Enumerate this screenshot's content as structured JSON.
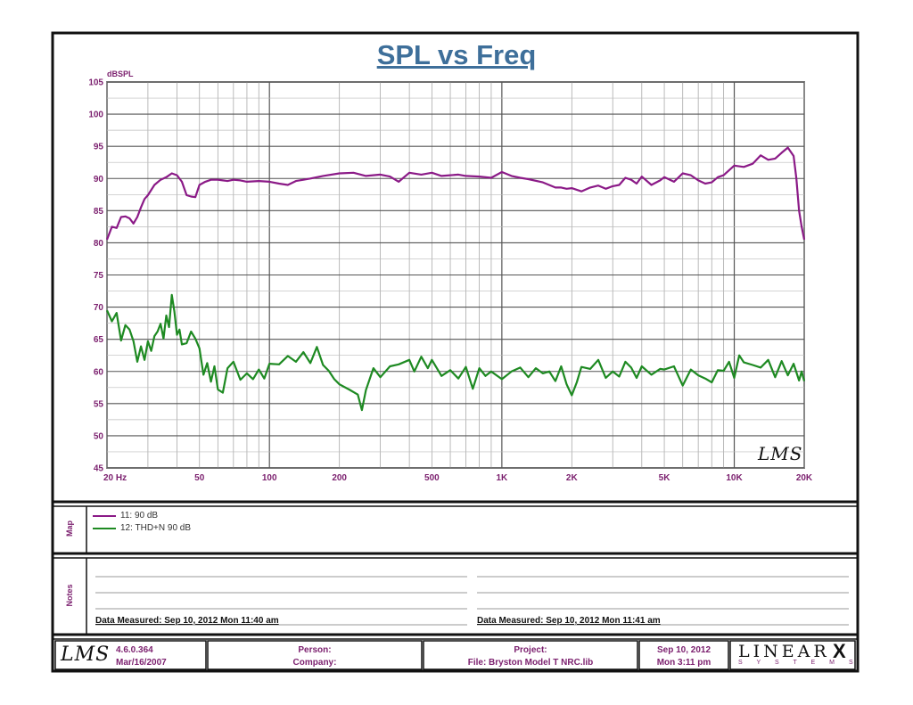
{
  "chart_data": {
    "type": "line",
    "title": "SPL vs Freq",
    "ylabel": "dBSPL",
    "xscale": "log",
    "xlim": [
      20,
      20000
    ],
    "ylim": [
      45,
      105
    ],
    "y_ticks": [
      45,
      50,
      55,
      60,
      65,
      70,
      75,
      80,
      85,
      90,
      95,
      100,
      105
    ],
    "x_tick_labels": [
      {
        "value": 20,
        "label": "20  Hz"
      },
      {
        "value": 50,
        "label": "50"
      },
      {
        "value": 100,
        "label": "100"
      },
      {
        "value": 200,
        "label": "200"
      },
      {
        "value": 500,
        "label": "500"
      },
      {
        "value": 1000,
        "label": "1K"
      },
      {
        "value": 2000,
        "label": "2K"
      },
      {
        "value": 5000,
        "label": "5K"
      },
      {
        "value": 10000,
        "label": "10K"
      },
      {
        "value": 20000,
        "label": "20K"
      }
    ],
    "grid": true,
    "legend_position": "below-chart",
    "series": [
      {
        "name": "11: 90 dB",
        "color": "#8b1a87",
        "x": [
          20,
          21,
          22,
          23,
          24,
          25,
          26,
          27,
          28,
          29,
          30,
          32,
          34,
          36,
          38,
          40,
          42,
          44,
          46,
          48,
          50,
          53,
          56,
          60,
          63,
          66,
          70,
          75,
          80,
          90,
          100,
          110,
          120,
          130,
          140,
          150,
          170,
          200,
          230,
          260,
          300,
          330,
          360,
          400,
          450,
          500,
          550,
          600,
          650,
          700,
          800,
          900,
          1000,
          1100,
          1200,
          1300,
          1500,
          1700,
          1800,
          1900,
          2000,
          2200,
          2400,
          2600,
          2800,
          3000,
          3200,
          3400,
          3600,
          3800,
          4000,
          4400,
          4800,
          5000,
          5500,
          6000,
          6500,
          7000,
          7500,
          8000,
          8500,
          9000,
          10000,
          11000,
          12000,
          13000,
          14000,
          15000,
          16000,
          17000,
          18000,
          18500,
          19000,
          19500,
          20000
        ],
        "y": [
          80.5,
          82.5,
          82.3,
          84.0,
          84.1,
          83.8,
          83.0,
          84.0,
          85.5,
          86.8,
          87.4,
          89.0,
          89.8,
          90.2,
          90.8,
          90.5,
          89.5,
          87.4,
          87.2,
          87.1,
          89.0,
          89.5,
          89.8,
          89.8,
          89.7,
          89.6,
          89.8,
          89.7,
          89.5,
          89.6,
          89.5,
          89.2,
          89.0,
          89.6,
          89.8,
          90.0,
          90.4,
          90.8,
          90.9,
          90.4,
          90.6,
          90.3,
          89.5,
          90.9,
          90.6,
          90.9,
          90.4,
          90.5,
          90.6,
          90.4,
          90.3,
          90.1,
          91.0,
          90.4,
          90.1,
          89.9,
          89.4,
          88.6,
          88.6,
          88.4,
          88.5,
          88.0,
          88.6,
          88.9,
          88.4,
          88.8,
          89.0,
          90.1,
          89.8,
          89.2,
          90.3,
          89.0,
          89.7,
          90.2,
          89.5,
          90.8,
          90.5,
          89.7,
          89.2,
          89.4,
          90.2,
          90.5,
          92.0,
          91.8,
          92.3,
          93.6,
          92.9,
          93.1,
          94.0,
          94.8,
          93.5,
          90.0,
          85.0,
          82.5,
          80.5
        ]
      },
      {
        "name": "12: THD+N 90 dB",
        "color": "#1e8a22",
        "x": [
          20,
          21,
          22,
          23,
          24,
          25,
          26,
          27,
          28,
          29,
          30,
          31,
          32,
          33,
          34,
          35,
          36,
          37,
          38,
          39,
          40,
          41,
          42,
          44,
          46,
          48,
          50,
          52,
          54,
          56,
          58,
          60,
          63,
          66,
          70,
          75,
          80,
          85,
          90,
          95,
          100,
          110,
          120,
          130,
          140,
          150,
          160,
          170,
          180,
          190,
          200,
          220,
          240,
          250,
          260,
          280,
          300,
          330,
          360,
          400,
          420,
          450,
          480,
          500,
          550,
          600,
          650,
          700,
          750,
          800,
          850,
          900,
          1000,
          1100,
          1200,
          1300,
          1400,
          1500,
          1600,
          1700,
          1800,
          1900,
          2000,
          2100,
          2200,
          2400,
          2600,
          2800,
          3000,
          3200,
          3400,
          3600,
          3800,
          4000,
          4400,
          4800,
          5000,
          5500,
          6000,
          6500,
          7000,
          7500,
          8000,
          8500,
          9000,
          9500,
          10000,
          10500,
          11000,
          12000,
          13000,
          14000,
          15000,
          16000,
          17000,
          18000,
          19000,
          19500,
          20000
        ],
        "y": [
          69.5,
          67.8,
          69.1,
          64.8,
          67.2,
          66.5,
          64.7,
          61.5,
          63.9,
          61.8,
          64.7,
          63.2,
          65.5,
          66.2,
          67.4,
          65.1,
          68.7,
          66.9,
          71.9,
          69.3,
          65.7,
          66.5,
          64.2,
          64.4,
          66.2,
          65.1,
          63.6,
          59.5,
          61.3,
          58.4,
          60.8,
          57.2,
          56.7,
          60.5,
          61.5,
          58.7,
          59.7,
          58.8,
          60.3,
          58.9,
          61.2,
          61.1,
          62.4,
          61.5,
          63.0,
          61.3,
          63.8,
          61.0,
          60.1,
          58.8,
          58.0,
          57.2,
          56.4,
          54.0,
          57.1,
          60.5,
          59.1,
          60.8,
          61.1,
          61.8,
          60.0,
          62.3,
          60.5,
          61.8,
          59.3,
          60.2,
          58.9,
          60.7,
          57.3,
          60.5,
          59.3,
          60.0,
          58.8,
          60.0,
          60.6,
          59.1,
          60.5,
          59.7,
          60.0,
          58.5,
          60.8,
          58.0,
          56.3,
          58.3,
          60.7,
          60.4,
          61.8,
          59.0,
          60.0,
          59.2,
          61.5,
          60.6,
          59.0,
          60.8,
          59.5,
          60.4,
          60.3,
          60.8,
          57.8,
          60.3,
          59.4,
          58.9,
          58.3,
          60.2,
          60.1,
          61.5,
          59.0,
          62.5,
          61.4,
          61.0,
          60.6,
          61.8,
          59.1,
          61.6,
          59.4,
          61.2,
          58.6,
          60.0,
          58.5
        ]
      }
    ]
  },
  "legend": [
    {
      "label": "11: 90 dB",
      "color": "#8b1a87"
    },
    {
      "label": "12: THD+N 90 dB",
      "color": "#1e8a22"
    }
  ],
  "sections": {
    "map": "Map",
    "notes": "Notes"
  },
  "notes": {
    "left": "Data Measured: Sep 10, 2012  Mon 11:40 am",
    "right": "Data Measured: Sep 10, 2012  Mon 11:41 am"
  },
  "footer": {
    "logo": "LMS",
    "version": "4.6.0.364",
    "version_date": "Mar/16/2007",
    "person_label": "Person:",
    "company_label": "Company:",
    "project_label": "Project:",
    "file": "File: Bryston Model T NRC.lib",
    "date": "Sep 10, 2012",
    "time": "Mon  3:11 pm",
    "brand_top": "LINEAR",
    "brand_x": "X",
    "brand_bottom": "S Y S T E M S"
  },
  "watermark": "LMS"
}
